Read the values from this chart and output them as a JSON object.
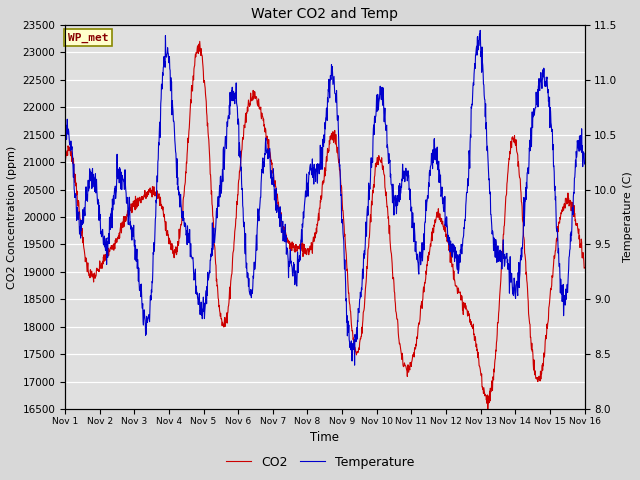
{
  "title": "Water CO2 and Temp",
  "xlabel": "Time",
  "ylabel_left": "CO2 Concentration (ppm)",
  "ylabel_right": "Temperature (C)",
  "ylim_left": [
    16500,
    23500
  ],
  "ylim_right": [
    8.0,
    11.5
  ],
  "fig_bg_color": "#d8d8d8",
  "plot_bg_color": "#e0e0e0",
  "co2_color": "#cc0000",
  "temp_color": "#0000cc",
  "legend_label_co2": "CO2",
  "legend_label_temp": "Temperature",
  "watermark_text": "WP_met",
  "watermark_bg": "#ffffcc",
  "watermark_border": "#888800",
  "watermark_color": "#880000",
  "n_days": 15,
  "x_tick_labels": [
    "Nov 1",
    "Nov 2",
    "Nov 3",
    "Nov 4",
    "Nov 5",
    "Nov 6",
    "Nov 7",
    "Nov 8",
    "Nov 9",
    "Nov 10",
    "Nov 11",
    "Nov 12",
    "Nov 13",
    "Nov 14",
    "Nov 15",
    "Nov 16"
  ],
  "co2_yticks": [
    16500,
    17000,
    17500,
    18000,
    18500,
    19000,
    19500,
    20000,
    20500,
    21000,
    21500,
    22000,
    22500,
    23000,
    23500
  ],
  "temp_yticks": [
    8.0,
    8.5,
    9.0,
    9.5,
    10.0,
    10.5,
    11.0,
    11.5
  ]
}
